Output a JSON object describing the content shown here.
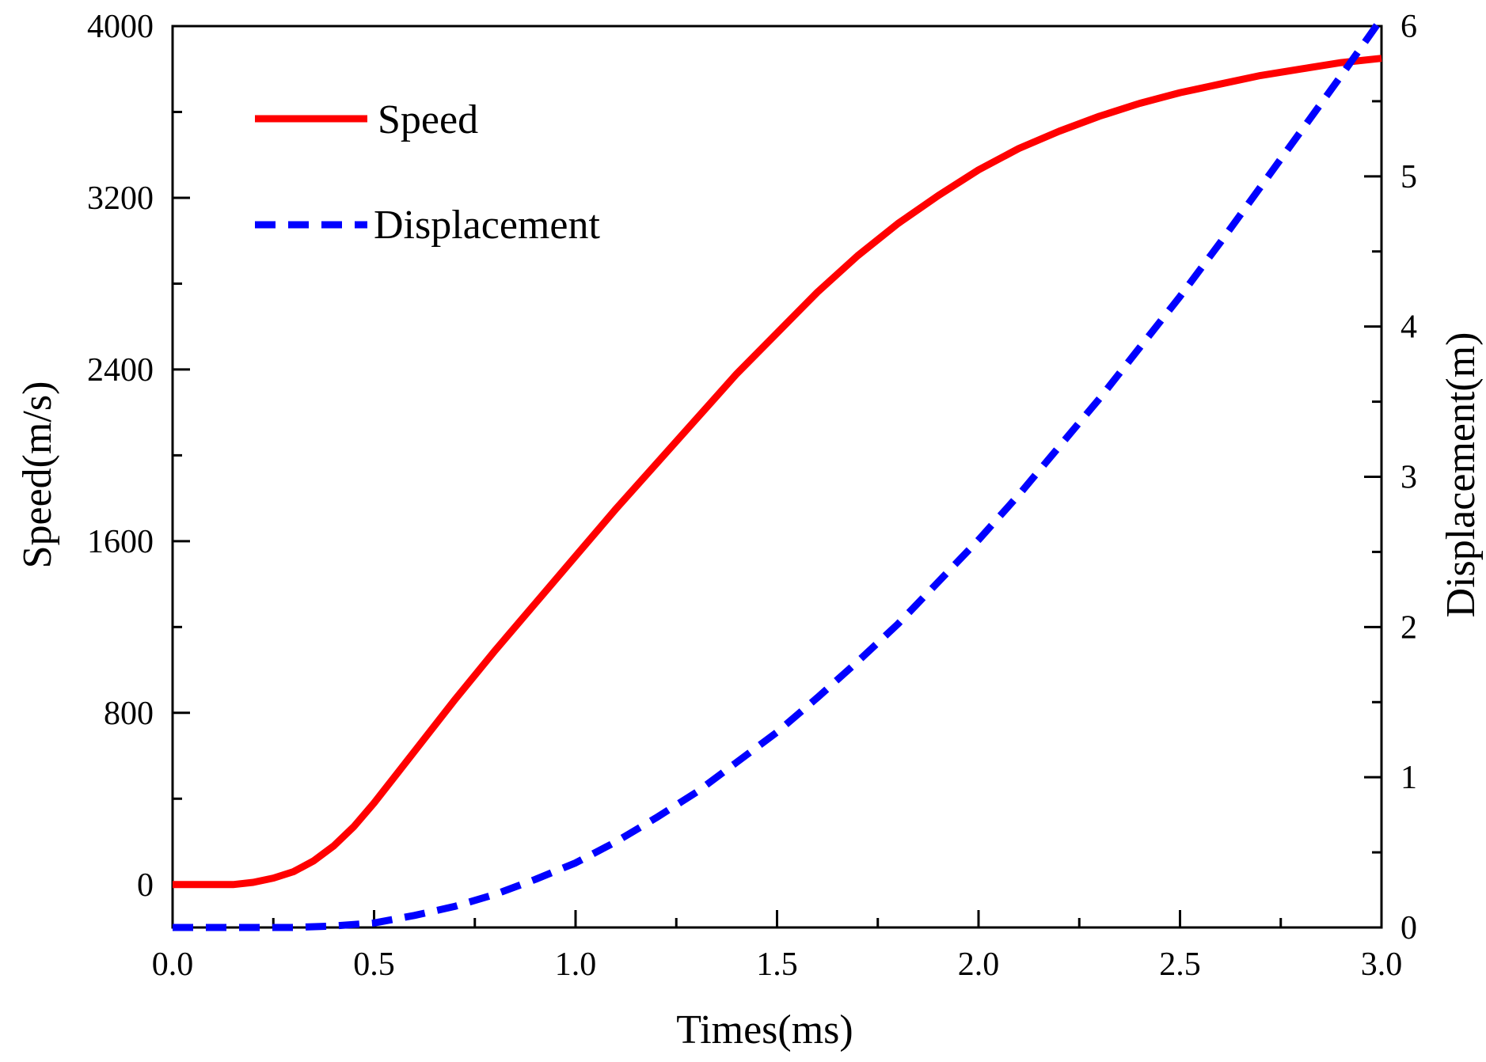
{
  "chart_data": {
    "type": "line",
    "title": "",
    "xlabel": "Times(ms)",
    "ylabel": "Speed(m/s)",
    "y2label": "Displacement(m)",
    "xlim": [
      0,
      3.0
    ],
    "ylim": [
      -200,
      4000
    ],
    "y2lim": [
      0,
      6
    ],
    "xticks": [
      "0.0",
      "0.5",
      "1.0",
      "1.5",
      "2.0",
      "2.5",
      "3.0"
    ],
    "yticks": [
      "0",
      "800",
      "1600",
      "2400",
      "3200",
      "4000"
    ],
    "y2ticks": [
      "0",
      "1",
      "2",
      "3",
      "4",
      "5",
      "6"
    ],
    "legend_position": "top-left",
    "grid": false,
    "series": [
      {
        "name": "Speed",
        "axis": "left",
        "color": "#ff0000",
        "style": "solid",
        "x": [
          0,
          0.1,
          0.15,
          0.2,
          0.25,
          0.3,
          0.35,
          0.4,
          0.45,
          0.5,
          0.6,
          0.7,
          0.8,
          0.9,
          1.0,
          1.1,
          1.2,
          1.3,
          1.4,
          1.5,
          1.6,
          1.7,
          1.8,
          1.9,
          2.0,
          2.1,
          2.2,
          2.3,
          2.4,
          2.5,
          2.6,
          2.7,
          2.8,
          2.9,
          3.0
        ],
        "y": [
          0,
          0,
          0,
          10,
          30,
          60,
          110,
          180,
          270,
          380,
          620,
          860,
          1090,
          1310,
          1530,
          1750,
          1960,
          2170,
          2380,
          2570,
          2760,
          2930,
          3080,
          3210,
          3330,
          3430,
          3510,
          3580,
          3640,
          3690,
          3730,
          3770,
          3800,
          3830,
          3850
        ]
      },
      {
        "name": "Displacement",
        "axis": "right",
        "color": "#0000ff",
        "style": "dashed",
        "x": [
          0,
          0.1,
          0.2,
          0.3,
          0.4,
          0.5,
          0.6,
          0.7,
          0.8,
          0.9,
          1.0,
          1.1,
          1.2,
          1.3,
          1.4,
          1.5,
          1.6,
          1.7,
          1.8,
          1.9,
          2.0,
          2.1,
          2.2,
          2.3,
          2.4,
          2.5,
          2.6,
          2.7,
          2.8,
          2.9,
          3.0
        ],
        "y": [
          0,
          0,
          0,
          0,
          0.01,
          0.03,
          0.08,
          0.14,
          0.22,
          0.32,
          0.43,
          0.57,
          0.73,
          0.9,
          1.1,
          1.3,
          1.53,
          1.77,
          2.02,
          2.3,
          2.58,
          2.88,
          3.2,
          3.52,
          3.86,
          4.2,
          4.56,
          4.93,
          5.3,
          5.67,
          6.05
        ]
      }
    ]
  }
}
